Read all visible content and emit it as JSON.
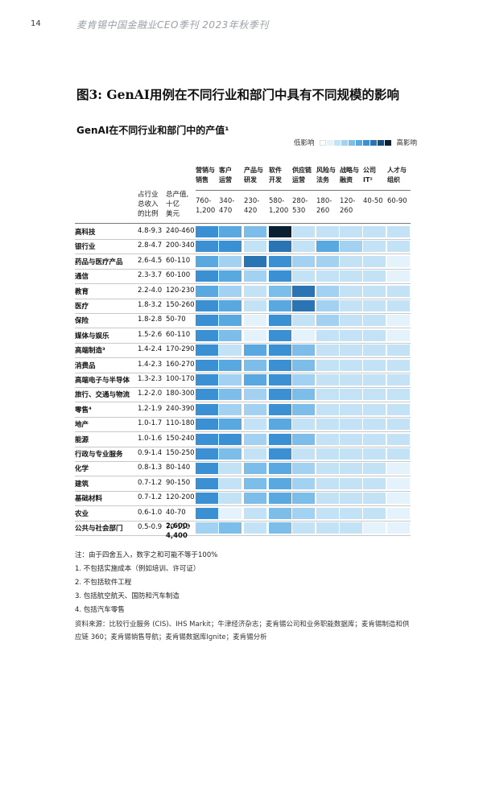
{
  "page_number": "14",
  "running_header": "麦肯锡中国金融业CEO季刊    2023年秋季刊",
  "figure": {
    "title": "图3: GenAI用例在不同行业和部门中具有不同规模的影响",
    "subtitle": "GenAI在不同行业和部门中的产值¹"
  },
  "legend": {
    "low": "低影响",
    "high": "高影响",
    "colors": [
      "#ffffff",
      "#e4f2fb",
      "#c4e2f6",
      "#a3d1f1",
      "#7cbde9",
      "#5aa8e0",
      "#3a90d3",
      "#2a74b4",
      "#1d4e80",
      "#0b1f33"
    ]
  },
  "header_left": {
    "share": "占行业\n总收入\n的比例",
    "total": "总产值,\n十亿\n美元"
  },
  "columns": [
    {
      "name": "营销与\n销售",
      "value": "760-\n1,200"
    },
    {
      "name": "客户\n运营",
      "value": "340-\n470"
    },
    {
      "name": "产品与\n研发",
      "value": "230-\n420"
    },
    {
      "name": "软件\n开发",
      "value": "580-\n1,200"
    },
    {
      "name": "供应链\n运营",
      "value": "280-\n530"
    },
    {
      "name": "风险与\n法务",
      "value": "180-\n260"
    },
    {
      "name": "战略与\n融资",
      "value": "120-\n260"
    },
    {
      "name": "公司\nIT²",
      "value": "40-50"
    },
    {
      "name": "人才与\n组织",
      "value": "60-90"
    }
  ],
  "rows": [
    {
      "sector": "高科技",
      "share": "4.8-9.3",
      "total": "240-460",
      "levels": [
        6,
        5,
        4,
        9,
        2,
        2,
        2,
        2,
        2
      ]
    },
    {
      "sector": "银行业",
      "share": "2.8-4.7",
      "total": "200-340",
      "levels": [
        6,
        6,
        2,
        7,
        2,
        5,
        3,
        2,
        2
      ]
    },
    {
      "sector": "药品与医疗产品",
      "share": "2.6-4.5",
      "total": "60-110",
      "levels": [
        5,
        3,
        7,
        6,
        3,
        3,
        2,
        2,
        1
      ]
    },
    {
      "sector": "通信",
      "share": "2.3-3.7",
      "total": "60-100",
      "levels": [
        6,
        5,
        3,
        6,
        2,
        2,
        2,
        2,
        1
      ]
    },
    {
      "sector": "教育",
      "share": "2.2-4.0",
      "total": "120-230",
      "levels": [
        5,
        3,
        2,
        4,
        7,
        3,
        2,
        2,
        2
      ]
    },
    {
      "sector": "医疗",
      "share": "1.8-3.2",
      "total": "150-260",
      "levels": [
        6,
        5,
        2,
        5,
        7,
        3,
        2,
        2,
        2
      ]
    },
    {
      "sector": "保险",
      "share": "1.8-2.8",
      "total": "50-70",
      "levels": [
        6,
        5,
        1,
        6,
        2,
        3,
        2,
        2,
        1
      ]
    },
    {
      "sector": "媒体与娱乐",
      "share": "1.5-2.6",
      "total": "60-110",
      "levels": [
        6,
        4,
        1,
        6,
        1,
        2,
        2,
        2,
        1
      ]
    },
    {
      "sector": "高端制造³",
      "share": "1.4-2.4",
      "total": "170-290",
      "levels": [
        6,
        2,
        5,
        6,
        4,
        2,
        2,
        2,
        2
      ]
    },
    {
      "sector": "消费品",
      "share": "1.4-2.3",
      "total": "160-270",
      "levels": [
        6,
        5,
        4,
        6,
        4,
        2,
        2,
        2,
        2
      ]
    },
    {
      "sector": "高端电子与半导体",
      "share": "1.3-2.3",
      "total": "100-170",
      "levels": [
        6,
        3,
        5,
        6,
        3,
        2,
        2,
        2,
        2
      ]
    },
    {
      "sector": "旅行、交通与物流",
      "share": "1.2-2.0",
      "total": "180-300",
      "levels": [
        6,
        4,
        3,
        6,
        4,
        2,
        2,
        2,
        2
      ]
    },
    {
      "sector": "零售⁴",
      "share": "1.2-1.9",
      "total": "240-390",
      "levels": [
        6,
        3,
        3,
        6,
        4,
        2,
        2,
        2,
        2
      ]
    },
    {
      "sector": "地产",
      "share": "1.0-1.7",
      "total": "110-180",
      "levels": [
        6,
        5,
        2,
        5,
        2,
        2,
        2,
        2,
        2
      ]
    },
    {
      "sector": "能源",
      "share": "1.0-1.6",
      "total": "150-240",
      "levels": [
        6,
        6,
        3,
        6,
        4,
        2,
        2,
        2,
        2
      ]
    },
    {
      "sector": "行政与专业服务",
      "share": "0.9-1.4",
      "total": "150-250",
      "levels": [
        6,
        4,
        2,
        6,
        2,
        2,
        2,
        2,
        2
      ]
    },
    {
      "sector": "化学",
      "share": "0.8-1.3",
      "total": "80-140",
      "levels": [
        6,
        2,
        4,
        5,
        3,
        2,
        2,
        2,
        1
      ]
    },
    {
      "sector": "建筑",
      "share": "0.7-1.2",
      "total": "90-150",
      "levels": [
        6,
        2,
        4,
        5,
        3,
        2,
        2,
        2,
        1
      ]
    },
    {
      "sector": "基础材料",
      "share": "0.7-1.2",
      "total": "120-200",
      "levels": [
        6,
        2,
        4,
        5,
        4,
        2,
        2,
        2,
        1
      ]
    },
    {
      "sector": "农业",
      "share": "0.6-1.0",
      "total": "40-70",
      "levels": [
        6,
        1,
        2,
        4,
        3,
        2,
        2,
        2,
        1
      ]
    },
    {
      "sector": "公共与社会部门",
      "share": "0.5-0.9",
      "total": "70-110",
      "levels": [
        3,
        4,
        2,
        4,
        2,
        2,
        2,
        1,
        1
      ]
    }
  ],
  "grand_total": "2,600-\n4,400",
  "notes": [
    "注：由于四舍五入，数字之和可能不等于100%",
    "1. 不包括实施成本（例如培训、许可证）",
    "2. 不包括软件工程",
    "3. 包括航空航天、国防和汽车制造",
    "4. 包括汽车零售"
  ],
  "source": "资料来源：比较行业服务 (CIS)、IHS Markit；牛津经济杂志；麦肯锡公司和业务职能数据库；麦肯锡制造和供应链 360；麦肯锡销售导航；麦肯锡数据库Ignite；麦肯锡分析"
}
